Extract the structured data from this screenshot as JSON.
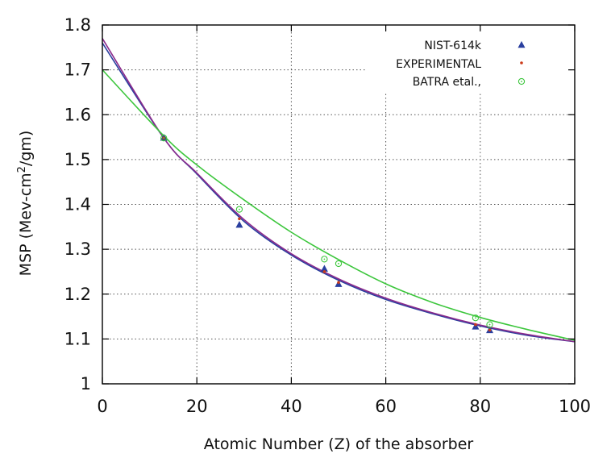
{
  "chart_data": {
    "type": "scatter",
    "title": "",
    "xlabel": "Atomic Number (Z) of the absorber",
    "ylabel": "MSP (Mev-cm²/gm)",
    "ylabel_parts": {
      "prefix": "MSP (Mev-cm",
      "sup": "2",
      "suffix": "/gm)"
    },
    "xlim": [
      0,
      100
    ],
    "ylim": [
      1.0,
      1.8
    ],
    "xticks": [
      "0",
      "20",
      "40",
      "60",
      "80",
      "100"
    ],
    "yticks": [
      "1",
      "1.1",
      "1.2",
      "1.3",
      "1.4",
      "1.5",
      "1.6",
      "1.7",
      "1.8"
    ],
    "grid": true,
    "legend_position": "top-right",
    "series": [
      {
        "name": "NIST-614k",
        "marker": "triangle",
        "color": "#2a3f9f",
        "x": [
          13,
          29,
          47,
          50,
          79,
          82
        ],
        "y": [
          1.548,
          1.354,
          1.256,
          1.222,
          1.127,
          1.119
        ],
        "fit": {
          "x": [
            0,
            13,
            20,
            30,
            40,
            50,
            60,
            70,
            80,
            90,
            100
          ],
          "y": [
            1.76,
            1.548,
            1.468,
            1.362,
            1.287,
            1.231,
            1.188,
            1.156,
            1.129,
            1.108,
            1.094
          ]
        },
        "fit_color": "#2a3f9f"
      },
      {
        "name": "EXPERIMENTAL",
        "marker": "dot",
        "color": "#cc3b1a",
        "x": [
          13,
          29,
          47,
          50,
          79,
          82
        ],
        "y": [
          1.548,
          1.368,
          1.25,
          1.226,
          1.132,
          1.12
        ],
        "fit": {
          "x": [
            0,
            13,
            20,
            30,
            40,
            50,
            60,
            70,
            80,
            90,
            100
          ],
          "y": [
            1.77,
            1.548,
            1.47,
            1.366,
            1.29,
            1.234,
            1.191,
            1.158,
            1.131,
            1.11,
            1.094
          ]
        },
        "fit_color": "#8b2a8c"
      },
      {
        "name": "BATRA etal.,",
        "marker": "circle-dot",
        "color": "#3cc63c",
        "x": [
          13,
          29,
          47,
          50,
          79,
          82
        ],
        "y": [
          1.548,
          1.389,
          1.278,
          1.268,
          1.147,
          1.132
        ],
        "fit": {
          "x": [
            0,
            13,
            20,
            30,
            40,
            50,
            60,
            70,
            80,
            90,
            100
          ],
          "y": [
            1.7,
            1.553,
            1.488,
            1.41,
            1.338,
            1.277,
            1.223,
            1.181,
            1.148,
            1.121,
            1.097
          ]
        },
        "fit_color": "#3cc63c"
      }
    ]
  }
}
